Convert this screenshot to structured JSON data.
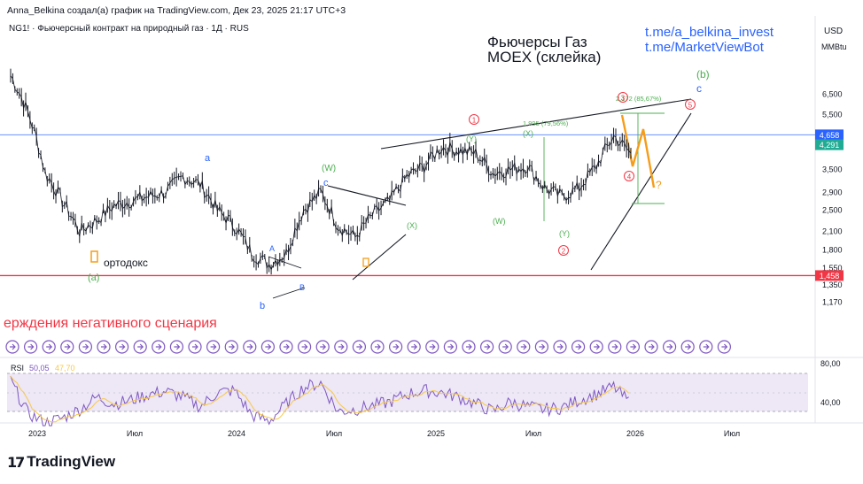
{
  "header": {
    "attribution": "Anna_Belkina создал(а) график на TradingView.com, Дек 23, 2025 21:17 UTC+3",
    "symbol_line": "NG1! · Фьючерсный контракт на природный газ · 1Д · RUS"
  },
  "brand": {
    "logo_mark": "17",
    "logo_text": "TradingView"
  },
  "title_block": {
    "line1": "Фьючерсы Газ",
    "line2": "MOEX (склейка)"
  },
  "links": {
    "line1": "t.me/a_belkina_invest",
    "line2": "t.me/MarketViewBot"
  },
  "axis": {
    "currency": "USD",
    "unit": "MMBtu"
  },
  "annotations": {
    "ortodox": "ортодокс",
    "negative_scenario": "ерждения негативного сценария",
    "wave_a_left": "(a)",
    "wave_a_top": "a",
    "wave_b_bottom": "b",
    "wave_A": "A",
    "wave_B": "B",
    "wave_c_left": "c",
    "wave_W_left": "(W)",
    "wave_X_left": "(X)",
    "wave_X_top": "(X)",
    "wave_W_mid": "(W)",
    "wave_Y_right": "(Y)",
    "wave_Y_top": "(Y)",
    "circ_1": "1",
    "circ_2": "2",
    "circ_3": "3",
    "circ_4": "4",
    "circ_5": "5",
    "wave_b_right": "(b)",
    "wave_c_right": "c",
    "question": "?",
    "fib_left": "1,995 (79,56%)",
    "fib_right": "2,172 (85,67%)"
  },
  "chart_data": {
    "type": "line",
    "title": "Фьючерсы Газ MOEX (склейка)",
    "xlabel": "",
    "ylabel": "USD / MMBtu",
    "x_tick_labels": [
      "2023",
      "Июл",
      "2024",
      "Июл",
      "2025",
      "Июл",
      "2026",
      "Июл"
    ],
    "y_tick_labels": [
      "6,500",
      "5,500",
      "4,700",
      "3,500",
      "2,900",
      "2,500",
      "2,100",
      "1,800",
      "1,550",
      "1,350",
      "1,170"
    ],
    "y_scale": "log",
    "ylim": [
      1.1,
      8.5
    ],
    "series": [
      {
        "name": "NG1!",
        "x": [
          "2022-12",
          "2023-01",
          "2023-02",
          "2023-03",
          "2023-04",
          "2023-05",
          "2023-06",
          "2023-07",
          "2023-08",
          "2023-09",
          "2023-10",
          "2023-11",
          "2023-12",
          "2024-01",
          "2024-02",
          "2024-03",
          "2024-04",
          "2024-05",
          "2024-06",
          "2024-07",
          "2024-08",
          "2024-09",
          "2024-10",
          "2024-11",
          "2024-12",
          "2025-01",
          "2025-02",
          "2025-03",
          "2025-04",
          "2025-05",
          "2025-06",
          "2025-07",
          "2025-08",
          "2025-09",
          "2025-10",
          "2025-11",
          "2025-12"
        ],
        "values": [
          7.6,
          5.6,
          3.4,
          2.7,
          2.1,
          2.3,
          2.6,
          2.7,
          2.8,
          2.9,
          3.3,
          3.1,
          2.5,
          2.2,
          1.75,
          1.6,
          1.75,
          2.5,
          2.9,
          2.2,
          2.0,
          2.4,
          2.7,
          3.3,
          3.6,
          4.2,
          4.1,
          4.0,
          3.4,
          3.5,
          3.6,
          3.0,
          2.8,
          3.0,
          3.6,
          4.6,
          4.0
        ]
      }
    ],
    "rsi": {
      "label": "RSI",
      "value": "50,05",
      "ma_value": "47,70",
      "levels": [
        "80,00",
        "40,00"
      ],
      "values": [
        72,
        38,
        28,
        33,
        42,
        55,
        48,
        52,
        58,
        61,
        55,
        45,
        60,
        62,
        36,
        30,
        48,
        65,
        70,
        40,
        42,
        46,
        50,
        58,
        62,
        60,
        55,
        48,
        40,
        50,
        45,
        42,
        44,
        52,
        58,
        66,
        48
      ]
    },
    "price_markers": [
      {
        "label": "4,658",
        "value": 4.658,
        "color": "#2962ff"
      },
      {
        "label": "4,291",
        "value": 4.291,
        "color": "#22ab94"
      },
      {
        "label": "1,458",
        "value": 1.458,
        "color": "#f23645"
      }
    ],
    "colors": {
      "price": "#131722",
      "rsi": "#7e57c2",
      "rsi_ma": "#f7c948",
      "support": "#f23645",
      "resistance": "#2962ff"
    }
  }
}
